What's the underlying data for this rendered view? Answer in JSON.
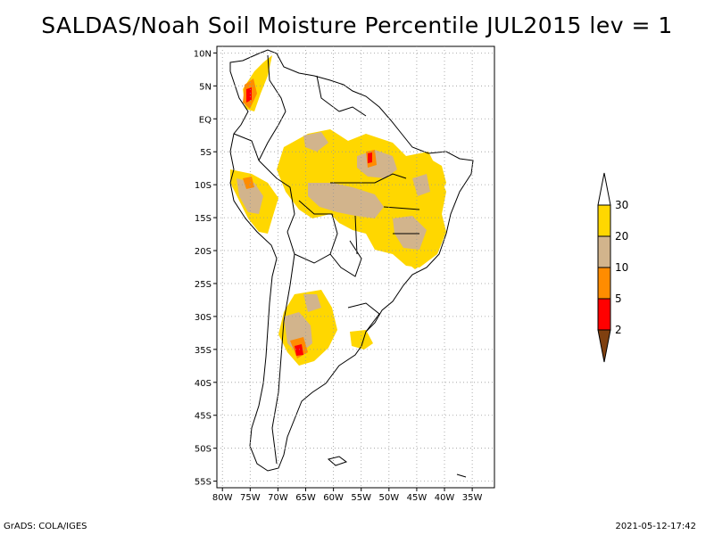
{
  "title": "SALDAS/Noah Soil Moisture Percentile JUL2015 lev = 1",
  "footer": {
    "left": "GrADS: COLA/IGES",
    "right": "2021-05-12-17:42"
  },
  "map": {
    "lon_range": [
      -81,
      -31
    ],
    "lat_range": [
      -56,
      11
    ],
    "lon_ticks": [
      {
        "value": -80,
        "label": "80W"
      },
      {
        "value": -75,
        "label": "75W"
      },
      {
        "value": -70,
        "label": "70W"
      },
      {
        "value": -65,
        "label": "65W"
      },
      {
        "value": -60,
        "label": "60W"
      },
      {
        "value": -55,
        "label": "55W"
      },
      {
        "value": -50,
        "label": "50W"
      },
      {
        "value": -45,
        "label": "45W"
      },
      {
        "value": -40,
        "label": "40W"
      },
      {
        "value": -35,
        "label": "35W"
      }
    ],
    "lat_ticks": [
      {
        "value": 10,
        "label": "10N"
      },
      {
        "value": 5,
        "label": "5N"
      },
      {
        "value": 0,
        "label": "EQ"
      },
      {
        "value": -5,
        "label": "5S"
      },
      {
        "value": -10,
        "label": "10S"
      },
      {
        "value": -15,
        "label": "15S"
      },
      {
        "value": -20,
        "label": "20S"
      },
      {
        "value": -25,
        "label": "25S"
      },
      {
        "value": -30,
        "label": "30S"
      },
      {
        "value": -35,
        "label": "35S"
      },
      {
        "value": -40,
        "label": "40S"
      },
      {
        "value": -45,
        "label": "45S"
      },
      {
        "value": -50,
        "label": "50S"
      },
      {
        "value": -55,
        "label": "55S"
      }
    ],
    "gridlines": true
  },
  "legend": {
    "colors": [
      "#7f4010",
      "#ff0000",
      "#ff8c00",
      "#d2b48c",
      "#ffd700",
      "#ffffff"
    ],
    "labels": [
      "2",
      "5",
      "10",
      "20",
      "30"
    ]
  }
}
